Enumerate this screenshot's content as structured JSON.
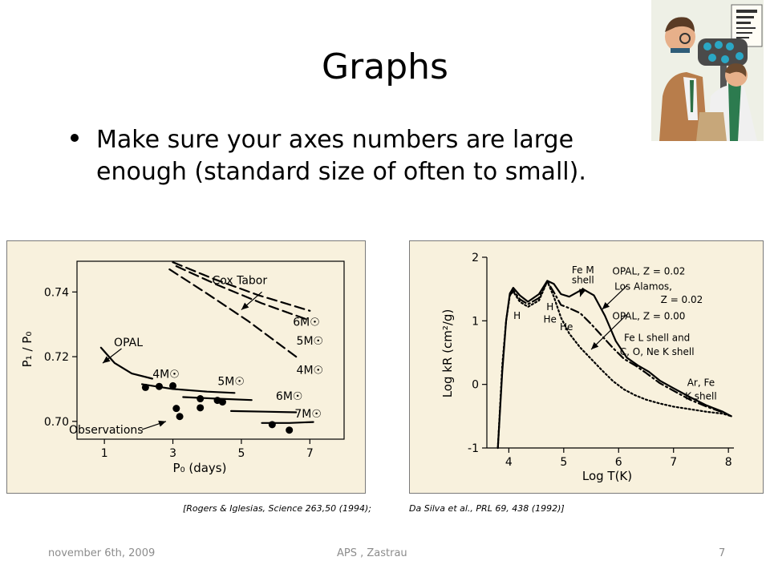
{
  "slide": {
    "title": "Graphs",
    "bullet": "Make sure your axes numbers are large enough (standard size of often to small).",
    "footer_left": "november 6th, 2009",
    "footer_center": "APS , Zastrau",
    "footer_right": "7",
    "citation_left": "[Rogers & Iglesias, Science 263,50 (1994);",
    "citation_right": "Da Silva et al., PRL 69, 438 (1992)]"
  },
  "colors": {
    "panel_bg": "#f8f1dd",
    "panel_border": "#7a7a7a",
    "footer_text": "#8c8c8c"
  },
  "icons": {
    "clipart": "eye-exam-clipart-icon"
  },
  "chart_data": [
    {
      "type": "scatter",
      "xlabel": "P₀ (days)",
      "ylabel": "P₁ / P₀",
      "xlim": [
        0.2,
        8.0
      ],
      "ylim": [
        0.6945,
        0.7495
      ],
      "xticks": [
        1,
        3,
        5,
        7
      ],
      "yticks": [
        0.7,
        0.72,
        0.74
      ],
      "ytick_labels": [
        "0.70",
        "0.72",
        "0.74"
      ],
      "series": [
        {
          "name": "OPAL",
          "style": "solid",
          "points": [
            [
              0.9,
              0.7228
            ],
            [
              1.3,
              0.718
            ],
            [
              1.8,
              0.7148
            ],
            [
              2.4,
              0.7132
            ]
          ]
        },
        {
          "name": "4M☉",
          "style": "solid",
          "points": [
            [
              2.1,
              0.7115
            ],
            [
              3.0,
              0.71
            ],
            [
              4.0,
              0.7092
            ],
            [
              4.8,
              0.7088
            ]
          ]
        },
        {
          "name": "5M☉",
          "style": "solid",
          "points": [
            [
              3.3,
              0.7075
            ],
            [
              4.3,
              0.707
            ],
            [
              5.3,
              0.7066
            ]
          ]
        },
        {
          "name": "6M☉",
          "style": "solid",
          "points": [
            [
              4.7,
              0.7032
            ],
            [
              5.7,
              0.703
            ],
            [
              6.6,
              0.7028
            ]
          ]
        },
        {
          "name": "7M☉",
          "style": "solid",
          "points": [
            [
              5.6,
              0.6995
            ],
            [
              6.4,
              0.6995
            ],
            [
              7.1,
              0.6998
            ]
          ]
        },
        {
          "name": "Cox Tabor 6M☉",
          "style": "dashed",
          "points": [
            [
              3.0,
              0.7492
            ],
            [
              4.2,
              0.744
            ],
            [
              5.5,
              0.739
            ],
            [
              7.0,
              0.7342
            ]
          ]
        },
        {
          "name": "Cox Tabor 5M☉",
          "style": "dashed",
          "points": [
            [
              3.1,
              0.748
            ],
            [
              4.3,
              0.7422
            ],
            [
              5.6,
              0.7365
            ],
            [
              7.0,
              0.7312
            ]
          ]
        },
        {
          "name": "Cox Tabor 4M☉",
          "style": "dashed",
          "points": [
            [
              2.9,
              0.747
            ],
            [
              4.0,
              0.7395
            ],
            [
              5.2,
              0.731
            ],
            [
              6.6,
              0.72
            ]
          ]
        },
        {
          "name": "Observations",
          "style": "markers",
          "points": [
            [
              2.2,
              0.7105
            ],
            [
              2.6,
              0.7108
            ],
            [
              3.0,
              0.711
            ],
            [
              3.1,
              0.704
            ],
            [
              3.2,
              0.7015
            ],
            [
              3.8,
              0.707
            ],
            [
              3.8,
              0.7042
            ],
            [
              4.3,
              0.7065
            ],
            [
              4.45,
              0.706
            ],
            [
              5.9,
              0.699
            ],
            [
              6.4,
              0.6973
            ]
          ]
        }
      ],
      "annotations": [
        {
          "text": "Cox Tabor",
          "x": 4.95,
          "y": 0.7425
        },
        {
          "text": "6M☉",
          "x": 6.9,
          "y": 0.7295
        },
        {
          "text": "5M☉",
          "x": 7.0,
          "y": 0.7237
        },
        {
          "text": "4M☉",
          "x": 7.0,
          "y": 0.7147
        },
        {
          "text": "OPAL",
          "x": 1.7,
          "y": 0.7232
        },
        {
          "text": "4M☉",
          "x": 2.8,
          "y": 0.7134
        },
        {
          "text": "5M☉",
          "x": 4.7,
          "y": 0.7112
        },
        {
          "text": "6M☉",
          "x": 6.4,
          "y": 0.7067
        },
        {
          "text": "7M☉",
          "x": 6.95,
          "y": 0.7012
        },
        {
          "text": "Observations",
          "x": 1.05,
          "y": 0.6962
        }
      ],
      "arrows": [
        {
          "from": [
            1.5,
            0.7225
          ],
          "to": [
            0.95,
            0.718
          ]
        },
        {
          "from": [
            2.1,
            0.6975
          ],
          "to": [
            2.8,
            0.7
          ]
        },
        {
          "from": [
            5.6,
            0.74
          ],
          "to": [
            5.0,
            0.7345
          ]
        }
      ]
    },
    {
      "type": "line",
      "xlabel": "Log T(K)",
      "ylabel": "Log kR (cm²/g)",
      "xlim": [
        3.6,
        8.1
      ],
      "ylim": [
        -1.0,
        2.0
      ],
      "xticks": [
        4,
        5,
        6,
        7,
        8
      ],
      "yticks": [
        -1,
        0,
        1,
        2
      ],
      "series": [
        {
          "name": "OPAL, Z = 0.02",
          "style": "solid",
          "points": [
            [
              3.8,
              -1.0
            ],
            [
              3.88,
              0.2
            ],
            [
              3.95,
              1.0
            ],
            [
              4.02,
              1.43
            ],
            [
              4.08,
              1.52
            ],
            [
              4.2,
              1.4
            ],
            [
              4.35,
              1.3
            ],
            [
              4.55,
              1.42
            ],
            [
              4.7,
              1.63
            ],
            [
              4.82,
              1.58
            ],
            [
              4.95,
              1.42
            ],
            [
              5.1,
              1.38
            ],
            [
              5.35,
              1.5
            ],
            [
              5.55,
              1.4
            ],
            [
              5.75,
              1.08
            ],
            [
              5.95,
              0.68
            ],
            [
              6.15,
              0.42
            ],
            [
              6.35,
              0.3
            ],
            [
              6.55,
              0.2
            ],
            [
              6.75,
              0.06
            ],
            [
              7.0,
              -0.06
            ],
            [
              7.3,
              -0.2
            ],
            [
              7.6,
              -0.33
            ],
            [
              7.9,
              -0.43
            ],
            [
              8.05,
              -0.5
            ]
          ]
        },
        {
          "name": "Los Alamos, Z = 0.02",
          "style": "dashdot",
          "points": [
            [
              4.02,
              1.4
            ],
            [
              4.08,
              1.48
            ],
            [
              4.2,
              1.34
            ],
            [
              4.35,
              1.26
            ],
            [
              4.55,
              1.36
            ],
            [
              4.7,
              1.62
            ],
            [
              4.82,
              1.45
            ],
            [
              4.95,
              1.25
            ],
            [
              5.1,
              1.2
            ],
            [
              5.3,
              1.12
            ],
            [
              5.5,
              0.95
            ],
            [
              5.7,
              0.76
            ],
            [
              5.9,
              0.57
            ],
            [
              6.1,
              0.4
            ],
            [
              6.3,
              0.3
            ],
            [
              6.5,
              0.18
            ],
            [
              6.75,
              0.02
            ],
            [
              7.0,
              -0.1
            ],
            [
              7.3,
              -0.24
            ],
            [
              7.6,
              -0.35
            ],
            [
              7.9,
              -0.44
            ],
            [
              8.05,
              -0.5
            ]
          ]
        },
        {
          "name": "OPAL, Z = 0.00",
          "style": "dotted",
          "points": [
            [
              3.8,
              -1.0
            ],
            [
              3.88,
              0.3
            ],
            [
              3.95,
              1.0
            ],
            [
              4.02,
              1.4
            ],
            [
              4.08,
              1.46
            ],
            [
              4.2,
              1.3
            ],
            [
              4.35,
              1.22
            ],
            [
              4.55,
              1.32
            ],
            [
              4.7,
              1.62
            ],
            [
              4.82,
              1.38
            ],
            [
              4.95,
              1.05
            ],
            [
              5.1,
              0.8
            ],
            [
              5.3,
              0.58
            ],
            [
              5.5,
              0.4
            ],
            [
              5.7,
              0.22
            ],
            [
              5.9,
              0.05
            ],
            [
              6.1,
              -0.08
            ],
            [
              6.3,
              -0.17
            ],
            [
              6.5,
              -0.24
            ],
            [
              6.75,
              -0.3
            ],
            [
              7.0,
              -0.35
            ],
            [
              7.3,
              -0.39
            ],
            [
              7.6,
              -0.43
            ],
            [
              7.9,
              -0.46
            ],
            [
              8.05,
              -0.5
            ]
          ]
        }
      ],
      "annotations": [
        {
          "text": "Fe M",
          "x": 5.35,
          "y": 1.75
        },
        {
          "text": "shell",
          "x": 5.35,
          "y": 1.59
        },
        {
          "text": "OPAL, Z = 0.02",
          "x": 6.55,
          "y": 1.73
        },
        {
          "text": "Los Alamos,",
          "x": 6.45,
          "y": 1.49
        },
        {
          "text": "Z = 0.02",
          "x": 7.15,
          "y": 1.28
        },
        {
          "text": "OPAL, Z = 0.00",
          "x": 6.55,
          "y": 1.02
        },
        {
          "text": "Fe L shell and",
          "x": 6.7,
          "y": 0.68
        },
        {
          "text": "C, O, Ne K shell",
          "x": 6.7,
          "y": 0.46
        },
        {
          "text": "Ar, Fe",
          "x": 7.5,
          "y": -0.02
        },
        {
          "text": "K shell",
          "x": 7.5,
          "y": -0.24
        },
        {
          "text": "H",
          "x": 4.15,
          "y": 1.03
        },
        {
          "text": "H",
          "x": 4.75,
          "y": 1.17
        },
        {
          "text": "He",
          "x": 4.75,
          "y": 0.97
        },
        {
          "text": "He",
          "x": 5.05,
          "y": 0.85
        }
      ],
      "arrows": [
        {
          "from": [
            5.35,
            1.52
          ],
          "to": [
            5.3,
            1.38
          ]
        },
        {
          "from": [
            6.15,
            1.55
          ],
          "to": [
            5.7,
            1.18
          ]
        },
        {
          "from": [
            6.15,
            1.1
          ],
          "to": [
            5.5,
            0.55
          ]
        }
      ]
    }
  ]
}
